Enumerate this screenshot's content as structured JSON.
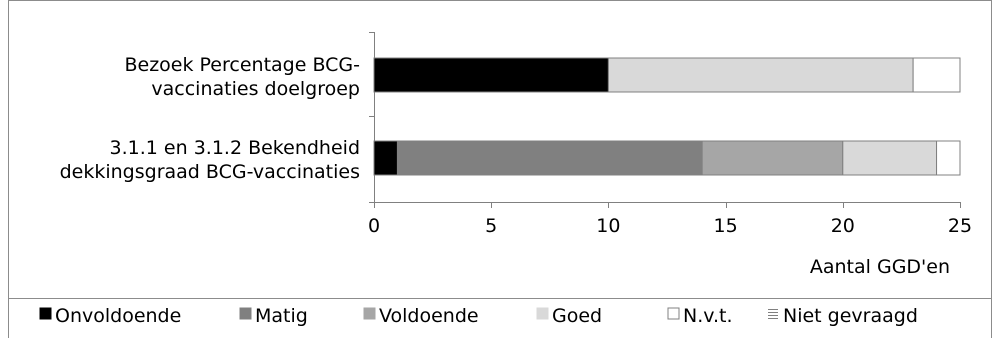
{
  "chart_data": {
    "type": "bar",
    "orientation": "horizontal",
    "stacked": true,
    "categories": [
      [
        "Bezoek Percentage BCG-",
        "vaccinaties doelgroep"
      ],
      [
        "3.1.1 en 3.1.2 Bekendheid",
        "dekkingsgraad BCG-vaccinaties"
      ]
    ],
    "series": [
      {
        "name": "Onvoldoende",
        "color": "#000000",
        "values": [
          10,
          1
        ]
      },
      {
        "name": "Matig",
        "color": "#808080",
        "values": [
          0,
          13
        ]
      },
      {
        "name": "Voldoende",
        "color": "#a6a6a6",
        "values": [
          0,
          6
        ]
      },
      {
        "name": "Goed",
        "color": "#d9d9d9",
        "values": [
          13,
          4
        ]
      },
      {
        "name": "N.v.t.",
        "color": "#ffffff",
        "values": [
          2,
          1
        ]
      },
      {
        "name": "Niet gevraagd",
        "color": "#ffffff",
        "values": [
          0,
          0
        ],
        "pattern": "hlines"
      }
    ],
    "xlabel": "Aantal GGD'en",
    "xlim": [
      0,
      25
    ],
    "xticks": [
      0,
      5,
      10,
      15,
      20,
      25
    ],
    "grid": false,
    "legend_position": "bottom"
  }
}
